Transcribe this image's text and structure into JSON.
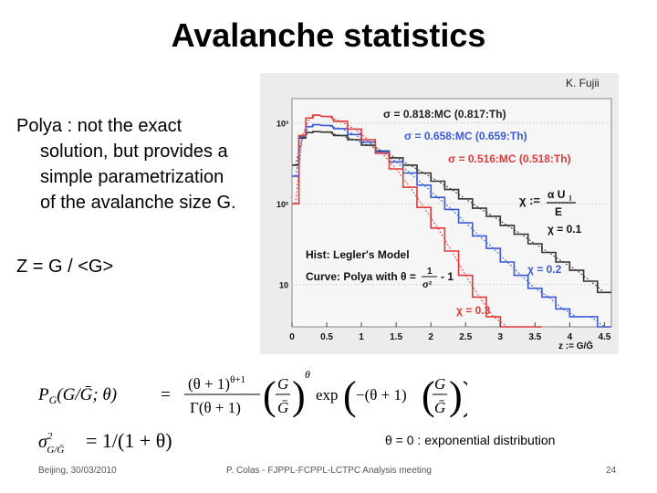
{
  "slide": {
    "title": "Avalanche statistics",
    "credit": "K. Fujii",
    "bullet_lines": [
      "Polya : not the exact",
      "solution, but provides a",
      "simple parametrization",
      "of the avalanche size G."
    ],
    "z_definition": "Z = G / <G>",
    "theta_note": "θ = 0 : exponential distribution"
  },
  "footer": {
    "left": "Beijing, 30/03/2010",
    "center": "P. Colas  -  FJPPL-FCPPL-LCTPC Analysis meeting",
    "page": "24"
  },
  "colors": {
    "black_series": "#333333",
    "blue_series": "#3a5bd9",
    "red_series": "#e03a3a",
    "panel_bg": "#ececec"
  },
  "chart_data": {
    "type": "line",
    "log_y": true,
    "xlabel": "z := G/Ḡ",
    "x_ticks": [
      "0",
      "0.5",
      "1",
      "1.5",
      "2",
      "2.5",
      "3",
      "3.5",
      "4",
      "4.5"
    ],
    "y_ticks": [
      "10",
      "10²",
      "10³"
    ],
    "xlim": [
      0,
      4.6
    ],
    "ylim": [
      3,
      2000
    ],
    "annotations": {
      "sigma_black": "σ = 0.818:MC (0.817:Th)",
      "sigma_blue": "σ = 0.658:MC (0.659:Th)",
      "sigma_red": "σ = 0.516:MC (0.518:Th)",
      "chi_def_lhs": "χ :=",
      "chi_def_num": "α U",
      "chi_def_sub": "I",
      "chi_def_den": "E",
      "chi_black": "χ = 0.1",
      "chi_blue": "χ = 0.2",
      "chi_red": "χ = 0.3",
      "hist_label": "Hist: Legler's Model",
      "curve_label_a": "Curve: Polya with θ =",
      "curve_label_b": "- 1",
      "frac_num": "1",
      "frac_den": "σ²"
    },
    "series": [
      {
        "color": "black",
        "x": [
          0.05,
          0.15,
          0.25,
          0.35,
          0.5,
          0.7,
          0.9,
          1.1,
          1.3,
          1.5,
          1.7,
          1.9,
          2.1,
          2.3,
          2.5,
          2.7,
          2.9,
          3.1,
          3.3,
          3.5,
          3.7,
          3.9,
          4.1,
          4.3,
          4.5
        ],
        "y": [
          300,
          650,
          760,
          780,
          770,
          700,
          620,
          530,
          450,
          370,
          300,
          240,
          190,
          150,
          115,
          88,
          70,
          54,
          42,
          32,
          25,
          19,
          15,
          11,
          8
        ]
      },
      {
        "color": "blue",
        "x": [
          0.05,
          0.15,
          0.25,
          0.35,
          0.5,
          0.7,
          0.9,
          1.1,
          1.3,
          1.5,
          1.7,
          1.9,
          2.1,
          2.3,
          2.5,
          2.7,
          2.9,
          3.1,
          3.3,
          3.5,
          3.7,
          3.9,
          4.1,
          4.3,
          4.5
        ],
        "y": [
          220,
          680,
          900,
          950,
          930,
          850,
          720,
          580,
          440,
          330,
          240,
          170,
          120,
          85,
          58,
          40,
          28,
          19,
          13,
          9,
          7,
          5,
          4,
          4,
          3
        ]
      },
      {
        "color": "red",
        "x": [
          0.05,
          0.15,
          0.25,
          0.35,
          0.5,
          0.7,
          0.9,
          1.1,
          1.3,
          1.5,
          1.7,
          1.9,
          2.1,
          2.3,
          2.5,
          2.7,
          2.9,
          3.1,
          3.3,
          3.5
        ],
        "y": [
          100,
          700,
          1150,
          1250,
          1200,
          1050,
          840,
          620,
          420,
          270,
          160,
          90,
          50,
          26,
          13,
          7,
          4,
          3,
          3,
          3
        ]
      }
    ]
  }
}
